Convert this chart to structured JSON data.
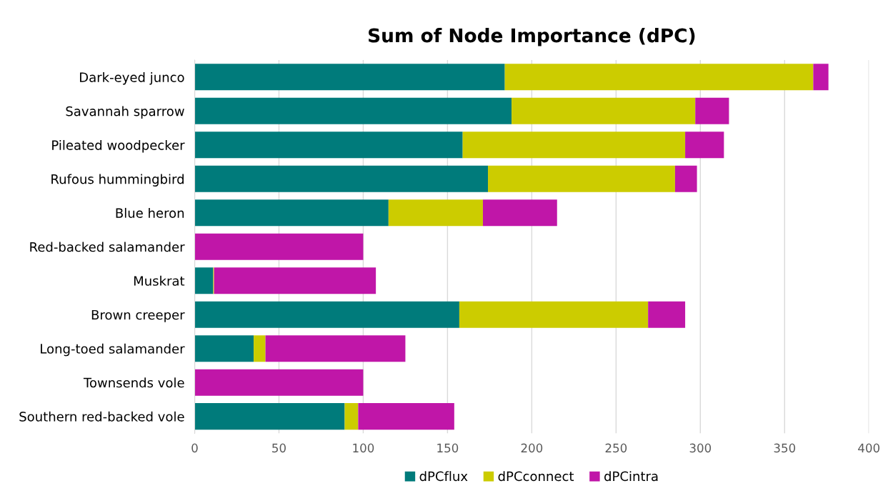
{
  "chart_data": {
    "type": "bar",
    "orientation": "horizontal",
    "stacked": true,
    "title": "Sum of Node Importance (dPC)",
    "categories": [
      "Dark-eyed junco",
      "Savannah sparrow",
      "Pileated woodpecker",
      "Rufous hummingbird",
      "Blue heron",
      "Red-backed salamander",
      "Muskrat",
      "Brown creeper",
      "Long-toed salamander",
      "Townsends vole",
      "Southern red-backed vole"
    ],
    "series": [
      {
        "name": "dPCflux",
        "color": "#007b7b",
        "values": [
          184,
          188,
          159,
          174,
          115,
          0,
          11,
          157,
          35,
          0,
          89
        ]
      },
      {
        "name": "dPCconnect",
        "color": "#cccc00",
        "values": [
          183,
          109,
          132,
          111,
          56,
          0,
          0.5,
          112,
          7,
          0,
          8
        ]
      },
      {
        "name": "dPCintra",
        "color": "#c016a8",
        "values": [
          9,
          20,
          23,
          13,
          44,
          100,
          96,
          22,
          83,
          100,
          57
        ]
      }
    ],
    "xlim": [
      0,
      400
    ],
    "xticks": [
      0,
      50,
      100,
      150,
      200,
      250,
      300,
      350,
      400
    ],
    "grid": "x",
    "legend": "bottom"
  }
}
